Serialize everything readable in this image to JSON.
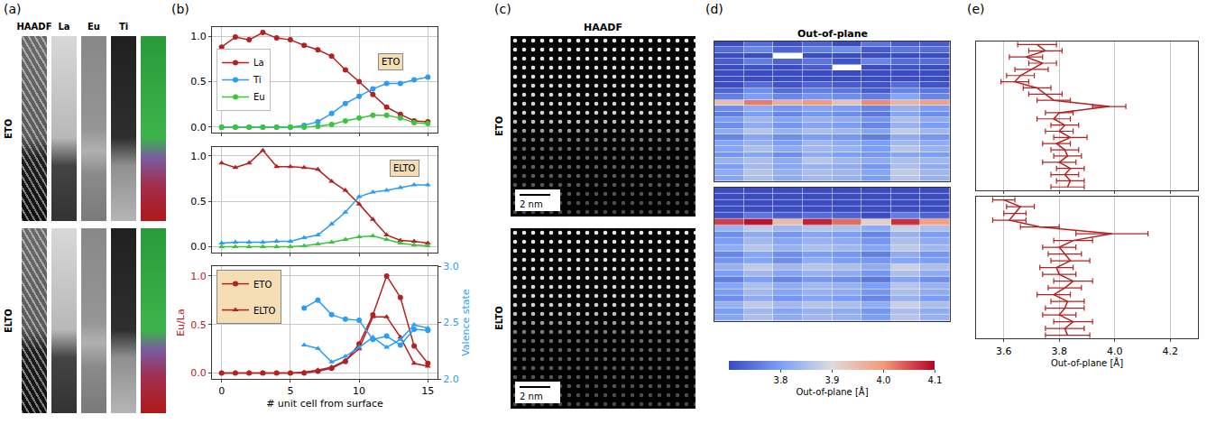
{
  "panel_labels": [
    "(a)",
    "(b)",
    "(c)",
    "(d)",
    "(e)"
  ],
  "images": {
    "a": {
      "columns": [
        "HAADF",
        "La",
        "Eu",
        "Ti"
      ],
      "rows": [
        "ETO",
        "ELTO"
      ]
    },
    "c": {
      "title": "HAADF",
      "rows": [
        "ETO",
        "ELTO"
      ],
      "scale_bar": "2 nm"
    }
  },
  "chart_data": [
    {
      "type": "line",
      "annotation": "ETO",
      "x": [
        0,
        1,
        2,
        3,
        4,
        5,
        6,
        7,
        8,
        9,
        10,
        11,
        12,
        13,
        14,
        15
      ],
      "series": [
        {
          "name": "La",
          "color": "#b22222",
          "marker": "circle",
          "values": [
            0.88,
            0.99,
            0.96,
            1.04,
            0.98,
            0.96,
            0.9,
            0.85,
            0.78,
            0.63,
            0.5,
            0.36,
            0.22,
            0.14,
            0.07,
            0.06
          ]
        },
        {
          "name": "Ti",
          "color": "#2a9df4",
          "marker": "circle",
          "values": [
            0,
            0,
            0,
            0,
            0,
            0,
            0.02,
            0.06,
            0.15,
            0.26,
            0.34,
            0.42,
            0.48,
            0.48,
            0.52,
            0.55
          ]
        },
        {
          "name": "Eu",
          "color": "#3cc43c",
          "marker": "circle",
          "values": [
            0,
            0,
            0,
            0,
            0,
            0,
            0,
            0.01,
            0.03,
            0.07,
            0.1,
            0.13,
            0.13,
            0.1,
            0.05,
            0.04
          ]
        }
      ],
      "xlim": [
        -0.7,
        15.7
      ],
      "xticks": [
        0,
        5,
        10,
        15
      ],
      "ylim": [
        -0.06,
        1.1
      ],
      "yticks": [
        {
          "value": 0,
          "label": "0.0"
        },
        {
          "value": 0.5,
          "label": "0.5"
        },
        {
          "value": 1,
          "label": "1.0"
        }
      ],
      "grid": true,
      "legend": "left",
      "tick_labels": "y"
    },
    {
      "type": "line",
      "annotation": "ELTO",
      "x": [
        0,
        1,
        2,
        3,
        4,
        5,
        6,
        7,
        8,
        9,
        10,
        11,
        12,
        13,
        14,
        15
      ],
      "series": [
        {
          "name": "La",
          "color": "#b22222",
          "marker": "triangle",
          "values": [
            0.92,
            0.87,
            0.92,
            1.06,
            0.88,
            0.88,
            0.87,
            0.85,
            0.72,
            0.62,
            0.47,
            0.3,
            0.13,
            0.07,
            0.06,
            0.04
          ]
        },
        {
          "name": "Ti",
          "color": "#2a9df4",
          "marker": "triangle",
          "values": [
            0.04,
            0.05,
            0.05,
            0.05,
            0.06,
            0.06,
            0.1,
            0.13,
            0.25,
            0.38,
            0.55,
            0.6,
            0.62,
            0.65,
            0.68,
            0.68
          ]
        },
        {
          "name": "Eu",
          "color": "#3cc43c",
          "marker": "triangle",
          "values": [
            0,
            0,
            0,
            0,
            0,
            0,
            0.01,
            0.03,
            0.05,
            0.08,
            0.11,
            0.12,
            0.08,
            0.04,
            0.02,
            0.01
          ]
        }
      ],
      "xlim": [
        -0.7,
        15.7
      ],
      "xticks": [
        0,
        5,
        10,
        15
      ],
      "ylim": [
        -0.06,
        1.1
      ],
      "yticks": [
        {
          "value": 0,
          "label": "0.0"
        },
        {
          "value": 0.5,
          "label": "0.5"
        },
        {
          "value": 1,
          "label": "1.0"
        }
      ],
      "grid": true,
      "tick_labels": "y"
    },
    {
      "type": "line",
      "x_label": "# unit cell from surface",
      "y_label": "Eu/La",
      "y2_label": "Valence state",
      "x": [
        0,
        1,
        2,
        3,
        4,
        5,
        6,
        7,
        8,
        9,
        10,
        11,
        12,
        13,
        14,
        15
      ],
      "series": [
        {
          "name": "ETO",
          "color": "#b22222",
          "marker": "circle",
          "values": [
            0,
            0,
            0,
            0,
            0,
            0,
            0,
            0.02,
            0.05,
            0.12,
            0.3,
            0.6,
            1.0,
            0.78,
            0.28,
            0.1
          ]
        },
        {
          "name": "ELTO",
          "color": "#b22222",
          "marker": "triangle",
          "values": [
            0,
            0,
            0,
            0,
            0,
            0,
            0.01,
            0.03,
            0.06,
            0.13,
            0.25,
            0.58,
            0.58,
            0.37,
            0.1,
            0.07
          ]
        },
        {
          "name": "ETO",
          "color": "#2a9df4",
          "marker": "circle",
          "axis": "y2",
          "values": [
            null,
            null,
            null,
            null,
            null,
            null,
            2.63,
            2.7,
            2.57,
            2.53,
            2.52,
            2.35,
            2.38,
            2.3,
            2.44,
            2.43
          ]
        },
        {
          "name": "ELTO",
          "color": "#2a9df4",
          "marker": "triangle",
          "axis": "y2",
          "values": [
            null,
            null,
            null,
            null,
            null,
            null,
            2.3,
            2.27,
            2.15,
            2.2,
            2.28,
            2.37,
            2.28,
            2.35,
            2.48,
            2.45
          ]
        }
      ],
      "xlim": [
        -0.7,
        15.7
      ],
      "xticks": [
        0,
        5,
        10,
        15
      ],
      "ylim": [
        -0.06,
        1.1
      ],
      "yticks": [
        {
          "value": 0,
          "label": "0.0"
        },
        {
          "value": 0.5,
          "label": "0.5"
        },
        {
          "value": 1,
          "label": "1.0"
        }
      ],
      "y2lim": [
        2,
        3
      ],
      "y2ticks": [
        {
          "value": 2,
          "label": "2.0"
        },
        {
          "value": 2.5,
          "label": "2.5"
        },
        {
          "value": 3,
          "label": "3.0"
        }
      ],
      "grid": true,
      "legend": "upper left"
    },
    {
      "type": "heatmap",
      "title": "Out-of-plane",
      "cells": [
        [
          3.7,
          3.74,
          3.71,
          3.73,
          3.69,
          3.75,
          3.72,
          3.72
        ],
        [
          3.74,
          3.77,
          3.73,
          3.76,
          3.78,
          3.72,
          3.75,
          3.74
        ],
        [
          3.66,
          3.7,
          null,
          3.69,
          3.67,
          3.7,
          3.66,
          3.68
        ],
        [
          3.72,
          3.76,
          3.73,
          3.75,
          3.71,
          3.77,
          3.74,
          3.74
        ],
        [
          3.69,
          3.71,
          3.68,
          3.72,
          null,
          3.7,
          3.71,
          3.69
        ],
        [
          3.65,
          3.67,
          3.64,
          3.68,
          3.66,
          3.65,
          3.67,
          3.66
        ],
        [
          3.63,
          3.66,
          3.62,
          3.65,
          3.64,
          3.63,
          3.65,
          3.64
        ],
        [
          3.7,
          3.74,
          3.71,
          3.73,
          3.72,
          3.71,
          3.74,
          3.71
        ],
        [
          3.73,
          3.78,
          3.74,
          3.76,
          3.75,
          3.72,
          3.77,
          3.75
        ],
        [
          3.76,
          3.8,
          3.77,
          3.79,
          3.78,
          3.76,
          3.81,
          3.77
        ],
        [
          3.95,
          4.02,
          3.97,
          4.0,
          3.94,
          4.01,
          3.96,
          3.99
        ],
        [
          3.78,
          3.82,
          3.79,
          3.81,
          3.8,
          3.77,
          3.83,
          3.8
        ],
        [
          3.76,
          3.8,
          3.77,
          3.79,
          3.78,
          3.75,
          3.81,
          3.78
        ],
        [
          3.8,
          3.84,
          3.81,
          3.83,
          3.82,
          3.79,
          3.85,
          3.82
        ],
        [
          3.78,
          3.82,
          3.79,
          3.81,
          3.8,
          3.77,
          3.83,
          3.8
        ],
        [
          3.82,
          3.86,
          3.83,
          3.85,
          3.84,
          3.81,
          3.87,
          3.84
        ],
        [
          3.77,
          3.81,
          3.78,
          3.8,
          3.79,
          3.76,
          3.82,
          3.79
        ],
        [
          3.81,
          3.83,
          3.8,
          3.84,
          3.82,
          3.8,
          3.84,
          3.82
        ],
        [
          3.81,
          3.85,
          3.82,
          3.84,
          3.83,
          3.8,
          3.86,
          3.83
        ],
        [
          3.79,
          3.81,
          3.78,
          3.82,
          3.8,
          3.79,
          3.81,
          3.8
        ],
        [
          3.83,
          3.85,
          3.82,
          3.86,
          3.84,
          3.82,
          3.85,
          3.84
        ],
        [
          3.8,
          3.84,
          3.81,
          3.83,
          3.82,
          3.79,
          3.85,
          3.82
        ],
        [
          3.82,
          3.86,
          3.83,
          3.85,
          3.84,
          3.81,
          3.87,
          3.84
        ],
        [
          3.81,
          3.85,
          3.82,
          3.84,
          3.83,
          3.8,
          3.86,
          3.83
        ]
      ],
      "xlim": [
        -0.5,
        7.5
      ],
      "ylim": [
        -0.5,
        23.5
      ],
      "zlim": [
        3.7,
        4.1
      ],
      "tick_labels": false
    },
    {
      "type": "heatmap",
      "cells": [
        [
          3.58,
          3.62,
          3.59,
          3.61,
          3.6,
          3.57,
          3.63,
          3.6
        ],
        [
          3.64,
          3.68,
          3.65,
          3.67,
          3.66,
          3.63,
          3.69,
          3.66
        ],
        [
          3.62,
          3.66,
          3.63,
          3.65,
          3.64,
          3.61,
          3.67,
          3.64
        ],
        [
          3.6,
          3.64,
          3.61,
          3.63,
          3.62,
          3.59,
          3.65,
          3.62
        ],
        [
          3.71,
          3.75,
          3.72,
          3.74,
          3.73,
          3.7,
          3.76,
          3.73
        ],
        [
          4.06,
          4.09,
          3.95,
          4.08,
          4.03,
          3.92,
          4.07,
          3.99
        ],
        [
          3.83,
          3.87,
          3.84,
          3.86,
          3.85,
          3.82,
          3.88,
          3.85
        ],
        [
          3.78,
          3.82,
          3.79,
          3.81,
          3.8,
          3.77,
          3.83,
          3.8
        ],
        [
          3.8,
          3.84,
          3.81,
          3.83,
          3.82,
          3.79,
          3.85,
          3.82
        ],
        [
          3.82,
          3.86,
          3.83,
          3.85,
          3.84,
          3.81,
          3.87,
          3.84
        ],
        [
          3.77,
          3.81,
          3.78,
          3.8,
          3.79,
          3.76,
          3.82,
          3.79
        ],
        [
          3.79,
          3.81,
          3.78,
          3.82,
          3.8,
          3.79,
          3.81,
          3.8
        ],
        [
          3.83,
          3.87,
          3.84,
          3.86,
          3.85,
          3.82,
          3.88,
          3.85
        ],
        [
          3.8,
          3.84,
          3.81,
          3.83,
          3.82,
          3.79,
          3.85,
          3.82
        ],
        [
          3.76,
          3.8,
          3.77,
          3.79,
          3.78,
          3.75,
          3.81,
          3.78
        ],
        [
          3.81,
          3.85,
          3.82,
          3.84,
          3.83,
          3.8,
          3.86,
          3.83
        ],
        [
          3.8,
          3.84,
          3.81,
          3.83,
          3.82,
          3.79,
          3.85,
          3.82
        ],
        [
          3.78,
          3.82,
          3.79,
          3.81,
          3.8,
          3.77,
          3.83,
          3.8
        ],
        [
          3.83,
          3.87,
          3.84,
          3.86,
          3.85,
          3.82,
          3.88,
          3.85
        ],
        [
          3.8,
          3.84,
          3.81,
          3.83,
          3.82,
          3.79,
          3.85,
          3.82
        ],
        [
          3.81,
          3.85,
          3.82,
          3.84,
          3.83,
          3.8,
          3.86,
          3.83
        ]
      ],
      "xlim": [
        -0.5,
        7.5
      ],
      "ylim": [
        -0.5,
        20.5
      ],
      "zlim": [
        3.7,
        4.1
      ],
      "colorbar": {
        "title": "Out-of-plane [Å]",
        "ticks": [
          3.8,
          3.9,
          {
            "value": 4,
            "label": "4.0"
          },
          4.1
        ]
      },
      "tick_labels": false
    },
    {
      "type": "line",
      "color": "#b22222",
      "values": [
        3.72,
        3.75,
        3.68,
        3.74,
        3.7,
        3.66,
        3.64,
        3.72,
        3.75,
        3.78,
        3.98,
        3.8,
        3.78,
        3.82,
        3.8,
        3.84,
        3.79,
        3.82,
        3.83,
        3.8,
        3.84,
        3.82,
        3.84,
        3.83
      ],
      "errors": [
        0.07,
        0.06,
        0.06,
        0.05,
        0.06,
        0.05,
        0.05,
        0.05,
        0.06,
        0.06,
        0.06,
        0.05,
        0.06,
        0.05,
        0.05,
        0.06,
        0.05,
        0.05,
        0.05,
        0.06,
        0.05,
        0.05,
        0.05,
        0.06
      ],
      "xlim": [
        3.5,
        4.3
      ],
      "xticks": [
        3.6,
        3.8,
        {
          "value": 4,
          "label": "4.0"
        },
        4.2
      ],
      "ylim": [
        -0.5,
        23.5
      ],
      "grid": true,
      "tick_labels": false
    },
    {
      "type": "line",
      "color": "#b22222",
      "x_label": "Out-of-plane [Å]",
      "values": [
        3.6,
        3.66,
        3.64,
        3.62,
        3.73,
        3.99,
        3.85,
        3.8,
        3.82,
        3.84,
        3.79,
        3.8,
        3.85,
        3.82,
        3.78,
        3.83,
        3.82,
        3.8,
        3.85,
        3.82,
        3.83
      ],
      "errors": [
        0.04,
        0.05,
        0.04,
        0.06,
        0.07,
        0.13,
        0.07,
        0.06,
        0.06,
        0.07,
        0.06,
        0.06,
        0.07,
        0.06,
        0.06,
        0.06,
        0.07,
        0.06,
        0.07,
        0.07,
        0.08
      ],
      "xlim": [
        3.5,
        4.3
      ],
      "xticks": [
        3.6,
        3.8,
        {
          "value": 4,
          "label": "4.0"
        },
        4.2
      ],
      "ylim": [
        -0.5,
        20.5
      ],
      "grid": true,
      "tick_labels": "x"
    }
  ]
}
